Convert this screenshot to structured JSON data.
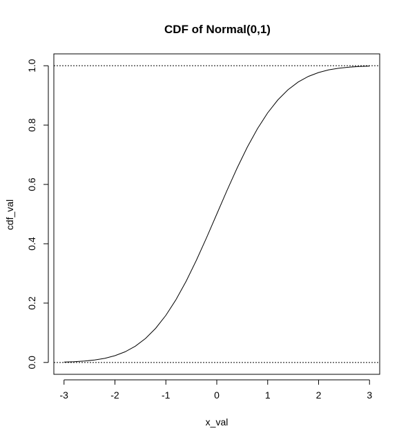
{
  "chart_data": {
    "type": "line",
    "title": "CDF of Normal(0,1)",
    "xlabel": "x_val",
    "ylabel": "cdf_val",
    "xlim": [
      -3.2,
      3.2
    ],
    "ylim": [
      -0.04,
      1.04
    ],
    "x_ticks": [
      -3,
      -2,
      -1,
      0,
      1,
      2,
      3
    ],
    "x_tick_labels": [
      "-3",
      "-2",
      "-1",
      "0",
      "1",
      "2",
      "3"
    ],
    "y_ticks": [
      0.0,
      0.2,
      0.4,
      0.6,
      0.8,
      1.0
    ],
    "y_tick_labels": [
      "0.0",
      "0.2",
      "0.4",
      "0.6",
      "0.8",
      "1.0"
    ],
    "grid": false,
    "legend": "none",
    "line_color": "#000000",
    "series": [
      {
        "x": [
          -3.0,
          -2.8,
          -2.6,
          -2.4,
          -2.2,
          -2.0,
          -1.8,
          -1.6,
          -1.4,
          -1.2,
          -1.0,
          -0.8,
          -0.6,
          -0.4,
          -0.2,
          0.0,
          0.2,
          0.4,
          0.6,
          0.8,
          1.0,
          1.2,
          1.4,
          1.6,
          1.8,
          2.0,
          2.2,
          2.4,
          2.6,
          2.8,
          3.0
        ],
        "values": [
          0.0013,
          0.0026,
          0.0047,
          0.0082,
          0.0139,
          0.0228,
          0.0359,
          0.0548,
          0.0808,
          0.1151,
          0.1587,
          0.2119,
          0.2743,
          0.3446,
          0.4207,
          0.5,
          0.5793,
          0.6554,
          0.7257,
          0.7881,
          0.8413,
          0.8849,
          0.9192,
          0.9452,
          0.9641,
          0.9772,
          0.9861,
          0.9918,
          0.9953,
          0.9974,
          0.9987
        ]
      }
    ],
    "reference_lines": [
      {
        "y": 0.0,
        "style": "dotted"
      },
      {
        "y": 1.0,
        "style": "dotted"
      }
    ]
  }
}
